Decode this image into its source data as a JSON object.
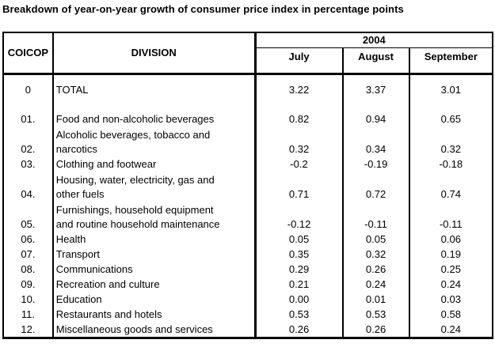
{
  "title": "Breakdown of year-on-year growth of consumer price index in percentage points",
  "colors": {
    "background": "#ffffff",
    "border": "#000000",
    "text": "#000000"
  },
  "table": {
    "year_header": "2004",
    "columns": {
      "coicop": "COICOP",
      "division": "DIVISION",
      "months": [
        "July",
        "August",
        "September"
      ]
    },
    "rows": [
      {
        "coicop": "0",
        "division": "TOTAL",
        "july": "3.22",
        "august": "3.37",
        "september": "3.01"
      },
      {
        "coicop": "01.",
        "division": "Food and non-alcoholic beverages",
        "july": "0.82",
        "august": "0.94",
        "september": "0.65"
      },
      {
        "coicop": "02.",
        "division": "Alcoholic beverages, tobacco and\nnarcotics",
        "july": "0.32",
        "august": "0.34",
        "september": "0.32"
      },
      {
        "coicop": "03.",
        "division": "Clothing and footwear",
        "july": "-0.2",
        "august": "-0.19",
        "september": "-0.18"
      },
      {
        "coicop": "04.",
        "division": "Housing, water, electricity, gas and\nother fuels",
        "july": "0.71",
        "august": "0.72",
        "september": "0.74"
      },
      {
        "coicop": "05.",
        "division": "Furnishings, household equipment\nand routine household maintenance",
        "july": "-0.12",
        "august": "-0.11",
        "september": "-0.11"
      },
      {
        "coicop": "06.",
        "division": "Health",
        "july": "0.05",
        "august": "0.05",
        "september": "0.06"
      },
      {
        "coicop": "07.",
        "division": "Transport",
        "july": "0.35",
        "august": "0.32",
        "september": "0.19"
      },
      {
        "coicop": "08.",
        "division": "Communications",
        "july": "0.29",
        "august": "0.26",
        "september": "0.25"
      },
      {
        "coicop": "09.",
        "division": "Recreation and culture",
        "july": "0.21",
        "august": "0.24",
        "september": "0.24"
      },
      {
        "coicop": "10.",
        "division": "Education",
        "july": "0.00",
        "august": "0.01",
        "september": "0.03"
      },
      {
        "coicop": "11.",
        "division": "Restaurants and hotels",
        "july": "0.53",
        "august": "0.53",
        "september": "0.58"
      },
      {
        "coicop": "12.",
        "division": "Miscellaneous goods and services",
        "july": "0.26",
        "august": "0.26",
        "september": "0.24"
      }
    ]
  }
}
